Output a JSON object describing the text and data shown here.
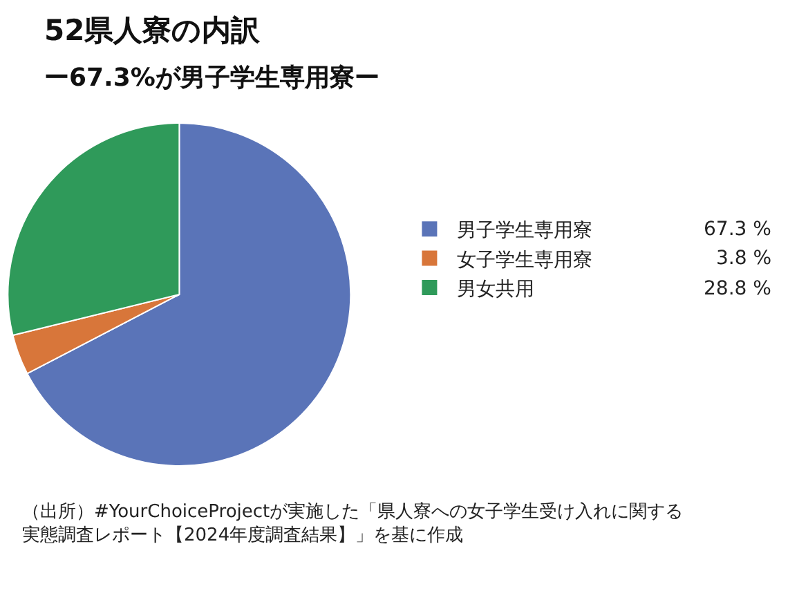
{
  "chart_data": {
    "type": "pie",
    "title": "52県人寮の内訳",
    "subtitle": "ー67.3%が男子学生専用寮ー",
    "categories": [
      "男子学生専用寮",
      "女子学生専用寮",
      "男女共用"
    ],
    "values": [
      67.3,
      3.8,
      28.8
    ],
    "colors": [
      "#5a74b8",
      "#d8763a",
      "#2f9a5a"
    ],
    "value_labels": [
      "67.3 %",
      "3.8 %",
      "28.8 %"
    ],
    "legend": "right",
    "annotations": [
      "（出所）#YourChoiceProjectが実施した「県人寮への女子学生受け入れに関する実態調査レポート【2024年度調査結果】」を基に作成"
    ]
  }
}
